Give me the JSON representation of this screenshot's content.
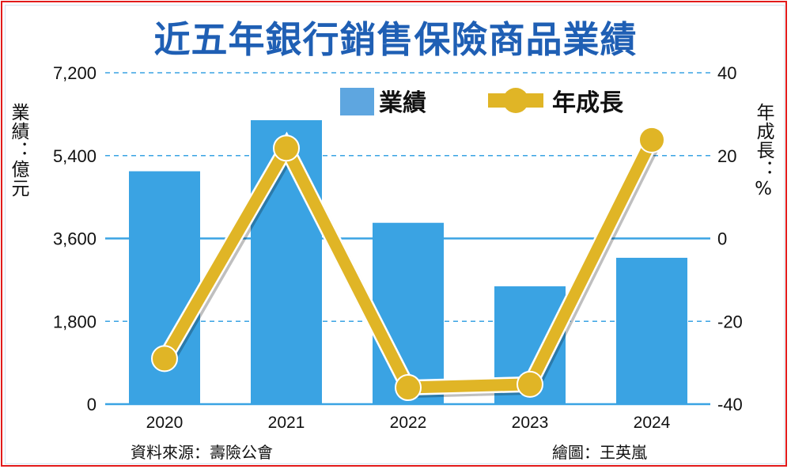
{
  "chart_data": {
    "type": "bar+line",
    "title": "近五年銀行銷售保險商品業績",
    "categories": [
      "2020",
      "2021",
      "2022",
      "2023",
      "2024"
    ],
    "series": [
      {
        "name": "業績",
        "type": "bar",
        "axis": "left",
        "values": [
          5060,
          6170,
          3940,
          2560,
          3180
        ],
        "color": "#3aa3e3"
      },
      {
        "name": "年成長",
        "type": "line",
        "axis": "right",
        "values": [
          -29.0,
          21.8,
          -36.0,
          -35.2,
          23.8
        ],
        "color": "#e0b526"
      }
    ],
    "ylabel_left": "業績：億元",
    "ylabel_right": "年成長：%",
    "ylim_left": [
      0,
      7200
    ],
    "ylim_right": [
      -40,
      40
    ],
    "yticks_left": [
      "0",
      "1,800",
      "3,600",
      "5,400",
      "7,200"
    ],
    "yticks_right": [
      "-40",
      "-20",
      "0",
      "20",
      "40"
    ],
    "legend_position": "top-right",
    "grid": true
  },
  "footer": {
    "source": "資料來源：壽險公會",
    "credit": "繪圖：王英嵐"
  }
}
